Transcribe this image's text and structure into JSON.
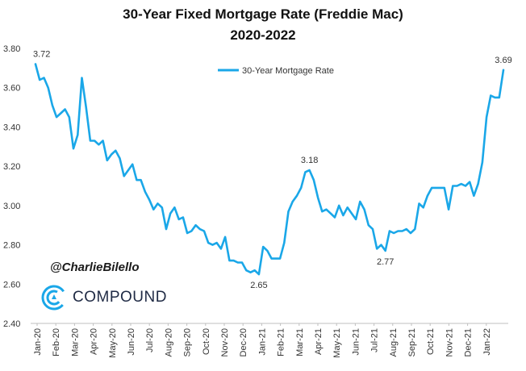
{
  "chart_data": {
    "type": "line",
    "title": "30-Year Fixed Mortgage Rate (Freddie Mac)",
    "subtitle": "2020-2022",
    "series": [
      {
        "name": "30-Year Mortgage Rate",
        "color": "#1aa7e8",
        "values": [
          3.72,
          3.64,
          3.65,
          3.6,
          3.51,
          3.45,
          3.47,
          3.49,
          3.45,
          3.29,
          3.36,
          3.65,
          3.5,
          3.33,
          3.33,
          3.31,
          3.33,
          3.23,
          3.26,
          3.28,
          3.24,
          3.15,
          3.18,
          3.21,
          3.13,
          3.13,
          3.07,
          3.03,
          2.98,
          3.01,
          2.99,
          2.88,
          2.96,
          2.99,
          2.93,
          2.94,
          2.86,
          2.87,
          2.9,
          2.88,
          2.87,
          2.81,
          2.8,
          2.81,
          2.78,
          2.84,
          2.72,
          2.72,
          2.71,
          2.71,
          2.67,
          2.66,
          2.67,
          2.65,
          2.79,
          2.77,
          2.73,
          2.73,
          2.73,
          2.81,
          2.97,
          3.02,
          3.05,
          3.09,
          3.17,
          3.18,
          3.13,
          3.04,
          2.97,
          2.98,
          2.96,
          2.94,
          3.0,
          2.95,
          2.99,
          2.96,
          2.93,
          3.02,
          2.98,
          2.9,
          2.88,
          2.78,
          2.8,
          2.77,
          2.87,
          2.86,
          2.87,
          2.87,
          2.88,
          2.86,
          2.88,
          3.01,
          2.99,
          3.05,
          3.09,
          3.09,
          3.09,
          3.09,
          2.98,
          3.1,
          3.1,
          3.11,
          3.1,
          3.12,
          3.05,
          3.11,
          3.22,
          3.45,
          3.56,
          3.55,
          3.55,
          3.69
        ]
      }
    ],
    "x_tick_labels": [
      "Jan-20",
      "Feb-20",
      "Mar-20",
      "Apr-20",
      "May-20",
      "Jun-20",
      "Jul-20",
      "Aug-20",
      "Sep-20",
      "Oct-20",
      "Nov-20",
      "Dec-20",
      "Jan-21",
      "Feb-21",
      "Mar-21",
      "Apr-21",
      "May-21",
      "Jun-21",
      "Jul-21",
      "Aug-21",
      "Sep-21",
      "Oct-21",
      "Nov-21",
      "Dec-21",
      "Jan-22"
    ],
    "y_ticks": [
      "2.40",
      "2.60",
      "2.80",
      "3.00",
      "3.20",
      "3.40",
      "3.60",
      "3.80"
    ],
    "ylim": [
      2.4,
      3.8
    ],
    "grid": false,
    "legend_position": "top-center",
    "annotations": [
      {
        "text": "3.72",
        "index": 0,
        "position": "above"
      },
      {
        "text": "2.65",
        "index": 53,
        "position": "below"
      },
      {
        "text": "3.18",
        "index": 65,
        "position": "above"
      },
      {
        "text": "2.77",
        "index": 83,
        "position": "below"
      },
      {
        "text": "3.69",
        "index": 111,
        "position": "above"
      }
    ]
  },
  "branding": {
    "handle": "@CharlieBilello",
    "company": "COMPOUND",
    "logo_icon": "compound-logo-icon",
    "accent_color": "#1aa7e8"
  }
}
